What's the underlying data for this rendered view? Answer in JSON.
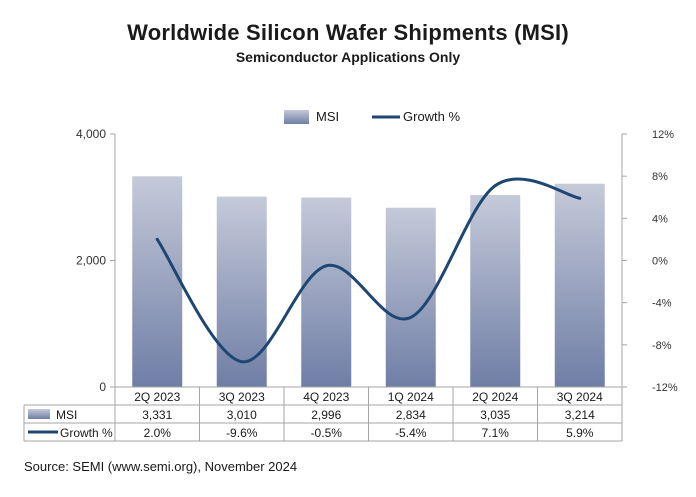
{
  "chart_data": {
    "type": "bar",
    "title": "Worldwide Silicon Wafer Shipments (MSI)",
    "subtitle": "Semiconductor Applications Only",
    "categories": [
      "2Q 2023",
      "3Q 2023",
      "4Q 2023",
      "1Q 2024",
      "2Q 2024",
      "3Q 2024"
    ],
    "series": [
      {
        "name": "MSI",
        "type": "bar",
        "axis": "left",
        "values": [
          3331,
          3010,
          2996,
          2834,
          3035,
          3214
        ],
        "labels": [
          "3,331",
          "3,010",
          "2,996",
          "2,834",
          "3,035",
          "3,214"
        ]
      },
      {
        "name": "Growth %",
        "type": "line",
        "axis": "right",
        "values": [
          2.0,
          -9.6,
          -0.5,
          -5.4,
          7.1,
          5.9
        ],
        "labels": [
          "2.0%",
          "-9.6%",
          "-0.5%",
          "-5.4%",
          "7.1%",
          "5.9%"
        ]
      }
    ],
    "y_left": {
      "ylim": [
        0,
        4000
      ],
      "ticks": [
        0,
        2000,
        4000
      ],
      "tick_labels": [
        "0",
        "2,000",
        "4,000"
      ]
    },
    "y_right": {
      "ylim": [
        -12,
        12
      ],
      "ticks": [
        -12,
        -8,
        -4,
        0,
        4,
        8,
        12
      ],
      "tick_labels": [
        "-12%",
        "-8%",
        "-4%",
        "0%",
        "4%",
        "8%",
        "12%"
      ]
    },
    "legend": {
      "placement": "top",
      "entries": [
        "MSI",
        "Growth %"
      ]
    },
    "grid": false,
    "source": "Source: SEMI (www.semi.org), November 2024"
  },
  "colors": {
    "bar_top": "#c5cad9",
    "bar_bottom": "#6f7ea6",
    "line": "#1f4672",
    "axis": "#a6a6a6"
  }
}
